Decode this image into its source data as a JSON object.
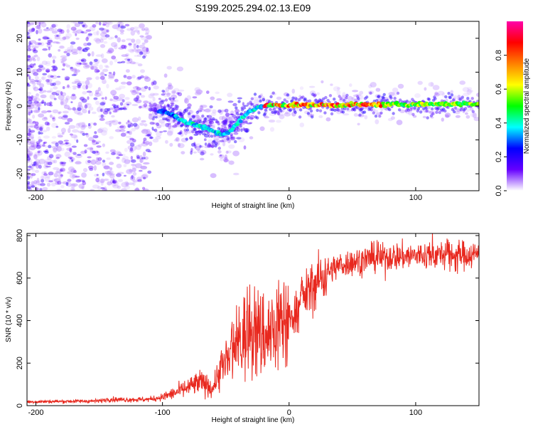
{
  "title": "S199.2025.294.02.13.E09",
  "colors": {
    "snr_line": "#e8281e",
    "axis": "#000000",
    "background": "#ffffff"
  },
  "chart_data": [
    {
      "type": "heatmap",
      "name": "spectrogram",
      "xlabel": "Height of straight line (km)",
      "ylabel": "Frequency (Hz)",
      "xlim": [
        -207,
        150
      ],
      "ylim": [
        -25,
        25
      ],
      "xticks": [
        -200,
        -100,
        0,
        100
      ],
      "xtick_labels": [
        "-200",
        "-100",
        "0",
        "100"
      ],
      "yticks": [
        -20,
        -10,
        0,
        10,
        20
      ],
      "ytick_labels": [
        "-20",
        "-10",
        "0",
        "10",
        "20"
      ],
      "ridge": {
        "x": [
          -100,
          -90,
          -80,
          -70,
          -60,
          -52,
          -45,
          -38,
          -32,
          -26,
          -20,
          -10,
          0,
          20,
          40,
          60,
          80,
          100,
          120,
          150
        ],
        "y": [
          -1.5,
          -3,
          -5,
          -6,
          -7.5,
          -8.5,
          -7,
          -4,
          -2,
          -0.5,
          0,
          0.3,
          0.3,
          0.3,
          0.3,
          0.4,
          0.4,
          0.5,
          0.6,
          0.6
        ]
      },
      "colorbar": {
        "label": "Normalized spectral amplitude",
        "range": [
          0,
          1
        ],
        "ticks": [
          0.0,
          0.2,
          0.4,
          0.6,
          0.8
        ],
        "tick_labels": [
          "0.0",
          "0.2",
          "0.4",
          "0.6",
          "0.8"
        ],
        "colormap": [
          "#ffffff",
          "#6600ff",
          "#0000ff",
          "#00ffff",
          "#00ff00",
          "#ffff00",
          "#ff8000",
          "#ff0000",
          "#ff00aa"
        ]
      }
    },
    {
      "type": "line",
      "name": "snr",
      "xlabel": "Height of straight line (km)",
      "ylabel": "SNR (10 * v/v)",
      "xlim": [
        -207,
        150
      ],
      "ylim": [
        0,
        810
      ],
      "xticks": [
        -200,
        -100,
        0,
        100
      ],
      "xtick_labels": [
        "-200",
        "-100",
        "0",
        "100"
      ],
      "yticks": [
        0,
        200,
        400,
        600,
        800
      ],
      "ytick_labels": [
        "0",
        "200",
        "400",
        "600",
        "800"
      ],
      "series": [
        {
          "name": "SNR",
          "x": [
            -207,
            -180,
            -150,
            -143,
            -130,
            -110,
            -100,
            -90,
            -80,
            -70,
            -60,
            -55,
            -50,
            -45,
            -40,
            -35,
            -30,
            -25,
            -20,
            -15,
            -10,
            -5,
            0,
            5,
            10,
            20,
            30,
            40,
            60,
            80,
            100,
            120,
            150
          ],
          "y": [
            18,
            20,
            22,
            30,
            28,
            30,
            40,
            60,
            85,
            110,
            80,
            170,
            190,
            240,
            290,
            330,
            360,
            330,
            340,
            330,
            365,
            390,
            400,
            440,
            500,
            570,
            630,
            660,
            690,
            700,
            705,
            710,
            710
          ]
        }
      ]
    }
  ]
}
